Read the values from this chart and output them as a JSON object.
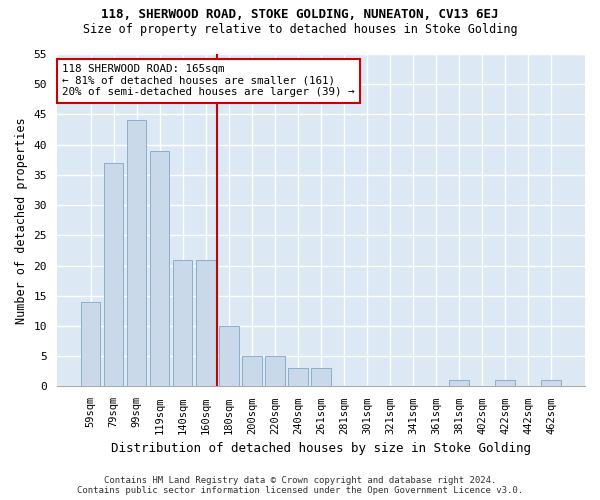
{
  "title1": "118, SHERWOOD ROAD, STOKE GOLDING, NUNEATON, CV13 6EJ",
  "title2": "Size of property relative to detached houses in Stoke Golding",
  "xlabel": "Distribution of detached houses by size in Stoke Golding",
  "ylabel": "Number of detached properties",
  "footer1": "Contains HM Land Registry data © Crown copyright and database right 2024.",
  "footer2": "Contains public sector information licensed under the Open Government Licence v3.0.",
  "categories": [
    "59sqm",
    "79sqm",
    "99sqm",
    "119sqm",
    "140sqm",
    "160sqm",
    "180sqm",
    "200sqm",
    "220sqm",
    "240sqm",
    "261sqm",
    "281sqm",
    "301sqm",
    "321sqm",
    "341sqm",
    "361sqm",
    "381sqm",
    "402sqm",
    "422sqm",
    "442sqm",
    "462sqm"
  ],
  "values": [
    14,
    37,
    44,
    39,
    21,
    21,
    10,
    5,
    5,
    3,
    3,
    0,
    0,
    0,
    0,
    0,
    1,
    0,
    1,
    0,
    1
  ],
  "bar_color": "#cad9ea",
  "bar_edge_color": "#8aafc8",
  "vline_x": 5.5,
  "vline_color": "#cc0000",
  "annotation_title": "118 SHERWOOD ROAD: 165sqm",
  "annotation_line1": "← 81% of detached houses are smaller (161)",
  "annotation_line2": "20% of semi-detached houses are larger (39) →",
  "annotation_box_color": "#cc0000",
  "ylim": [
    0,
    55
  ],
  "yticks": [
    0,
    5,
    10,
    15,
    20,
    25,
    30,
    35,
    40,
    45,
    50,
    55
  ],
  "bg_color": "#ffffff",
  "plot_bg": "#dce9f5",
  "grid_color": "#ffffff"
}
